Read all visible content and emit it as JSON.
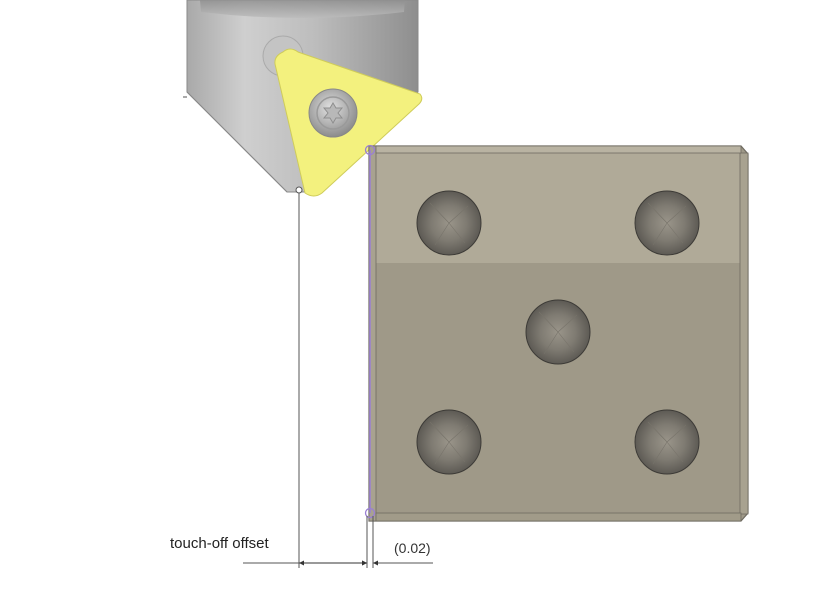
{
  "dimensions": {
    "offset_label": "touch-off offset",
    "gap_label": "(0.02)"
  },
  "colors": {
    "insert": "#f3f17e",
    "block_top_band": "#b0aa98",
    "block_body": "#9f9988",
    "holder": "#c8c8c8",
    "sketch_outline": "#9a7fd4",
    "dimension_line": "#444444"
  },
  "workpiece": {
    "holes": [
      "hole-top-left",
      "hole-top-right",
      "hole-center",
      "hole-bottom-left",
      "hole-bottom-right"
    ]
  }
}
